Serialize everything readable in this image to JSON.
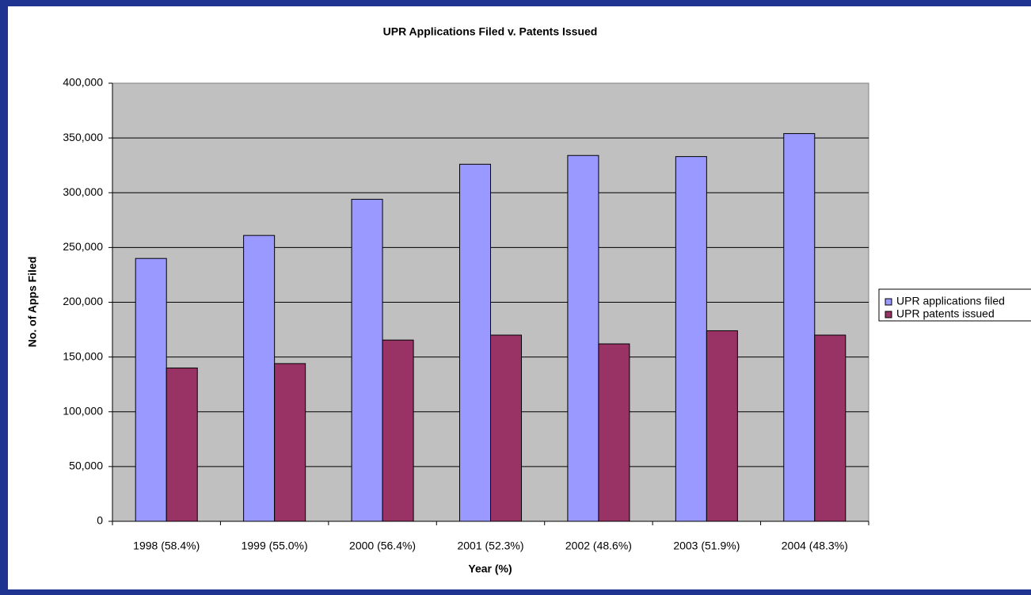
{
  "chart_data": {
    "type": "bar",
    "title": "UPR Applications Filed v. Patents Issued",
    "x_label": "Year (%)",
    "y_label": "No. of Apps Filed",
    "categories": [
      "1998 (58.4%)",
      "1999 (55.0%)",
      "2000 (56.4%)",
      "2001 (52.3%)",
      "2002 (48.6%)",
      "2003 (51.9%)",
      "2004 (48.3%)"
    ],
    "series": [
      {
        "name": "UPR applications filed",
        "color": "#9999ff",
        "values": [
          240000,
          261000,
          294000,
          326000,
          334000,
          333000,
          354000
        ]
      },
      {
        "name": "UPR patents issued",
        "color": "#993366",
        "values": [
          140000,
          144000,
          165500,
          170000,
          162000,
          174000,
          170000
        ]
      }
    ],
    "ylim": [
      0,
      400000
    ],
    "yticks": [
      0,
      {
        "value": 50000,
        "label": "50,000"
      },
      {
        "value": 100000,
        "label": "100,000"
      },
      {
        "value": 150000,
        "label": "150,000"
      },
      {
        "value": 200000,
        "label": "200,000"
      },
      {
        "value": 250000,
        "label": "250,000"
      },
      {
        "value": 300000,
        "label": "300,000"
      },
      {
        "value": 350000,
        "label": "350,000"
      },
      {
        "value": 400000,
        "label": "400,000"
      }
    ],
    "grid": true,
    "legend": "right"
  }
}
